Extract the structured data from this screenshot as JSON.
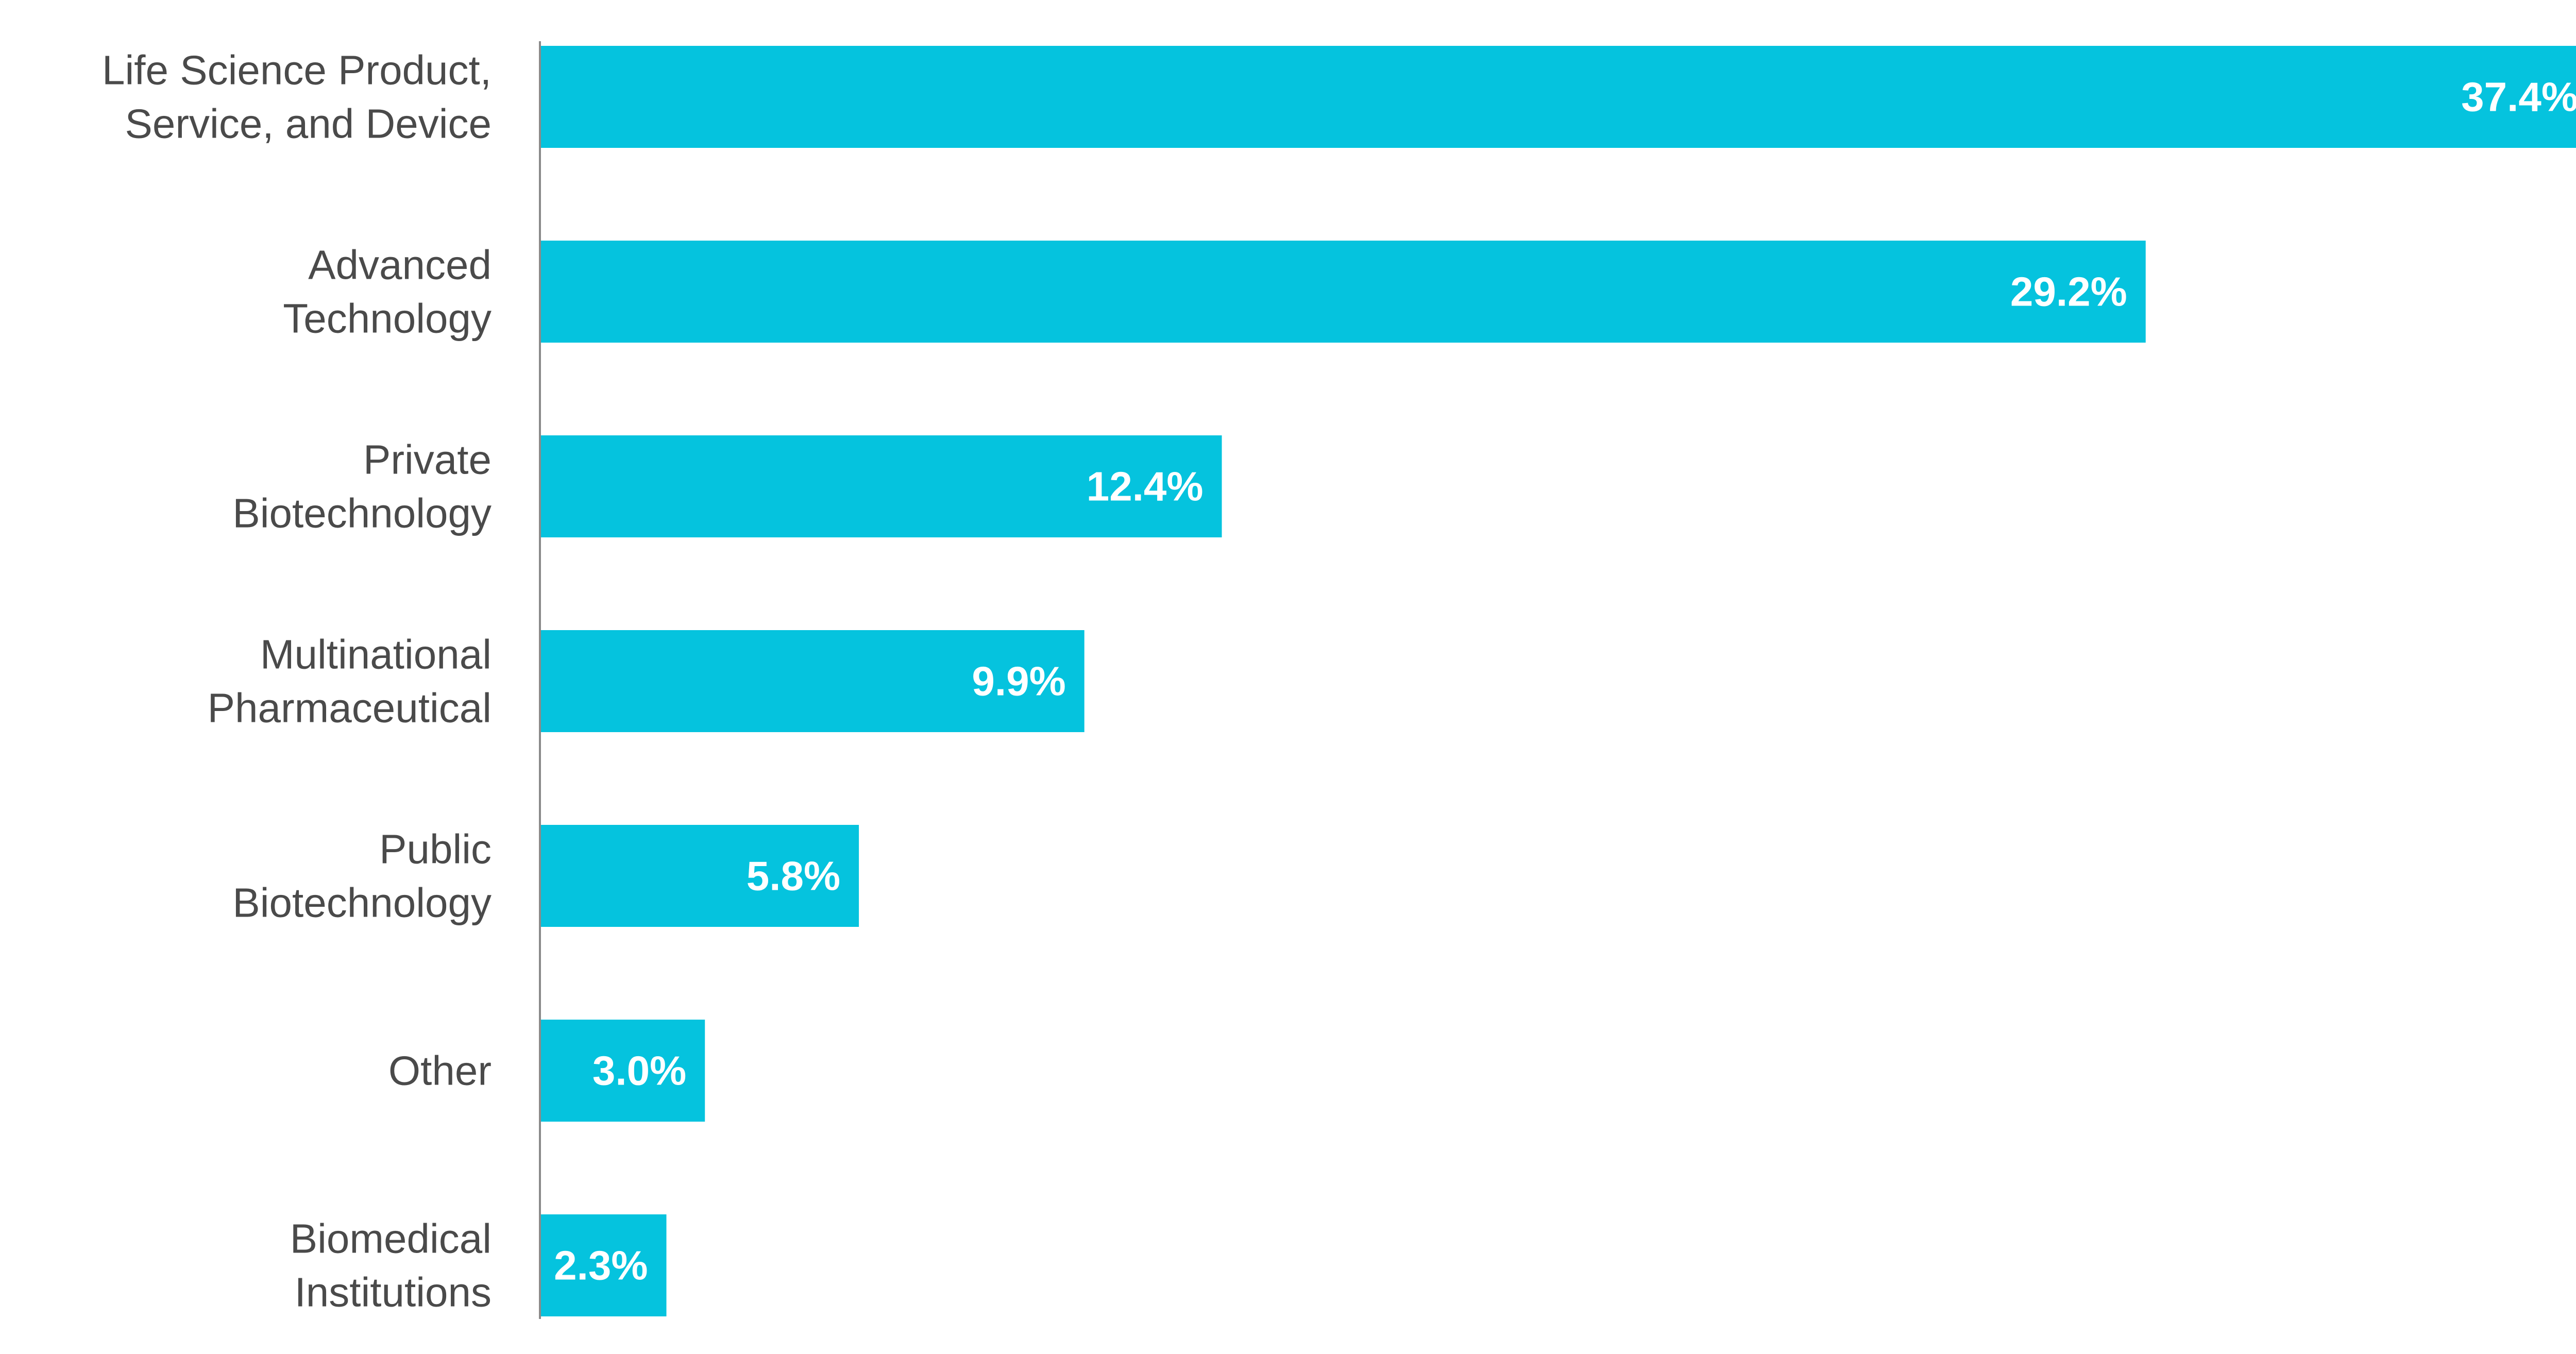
{
  "chart_data": {
    "type": "bar",
    "orientation": "horizontal",
    "categories": [
      [
        "Life Science Product,",
        "Service, and Device"
      ],
      [
        "Advanced",
        "Technology"
      ],
      [
        "Private",
        "Biotechnology"
      ],
      [
        "Multinational",
        "Pharmaceutical"
      ],
      [
        "Public",
        "Biotechnology"
      ],
      [
        "Other"
      ],
      [
        "Biomedical",
        "Institutions"
      ]
    ],
    "values": [
      37.4,
      29.2,
      12.4,
      9.9,
      5.8,
      3.0,
      2.3
    ],
    "value_labels": [
      "37.4%",
      "29.2%",
      "12.4%",
      "9.9%",
      "5.8%",
      "3.0%",
      "2.3%"
    ],
    "title": "",
    "xlabel": "",
    "ylabel": "",
    "xlim": [
      0,
      37.4
    ],
    "grid": false,
    "legend": "none",
    "colors": {
      "bar": "#05C3DE",
      "axis": "#8a8a8a",
      "category_text": "#4a4a4a",
      "value_text": "#ffffff"
    }
  }
}
